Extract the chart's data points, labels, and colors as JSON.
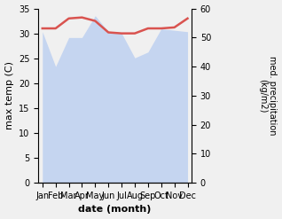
{
  "months": [
    "Jan",
    "Feb",
    "Mar",
    "Apr",
    "May",
    "Jun",
    "Jul",
    "Aug",
    "Sep",
    "Oct",
    "Nov",
    "Dec"
  ],
  "x": [
    0,
    1,
    2,
    3,
    4,
    5,
    6,
    7,
    8,
    9,
    10,
    11
  ],
  "temperature": [
    31.0,
    31.0,
    33.0,
    33.2,
    32.5,
    30.2,
    30.0,
    30.0,
    31.0,
    31.0,
    31.2,
    33.0
  ],
  "precipitation": [
    52.0,
    40.0,
    50.0,
    50.0,
    57.5,
    52.0,
    51.5,
    43.0,
    45.0,
    53.0,
    52.5,
    52.0
  ],
  "temp_color": "#d9534f",
  "precip_color": "#c5d5f0",
  "temp_ylim": [
    0,
    35
  ],
  "precip_ylim": [
    0,
    60
  ],
  "temp_yticks": [
    0,
    5,
    10,
    15,
    20,
    25,
    30,
    35
  ],
  "precip_yticks": [
    0,
    10,
    20,
    30,
    40,
    50,
    60
  ],
  "xlabel": "date (month)",
  "ylabel_left": "max temp (C)",
  "ylabel_right": "med. precipitation\n(kg/m2)",
  "bg_color": "#f0f0f0"
}
